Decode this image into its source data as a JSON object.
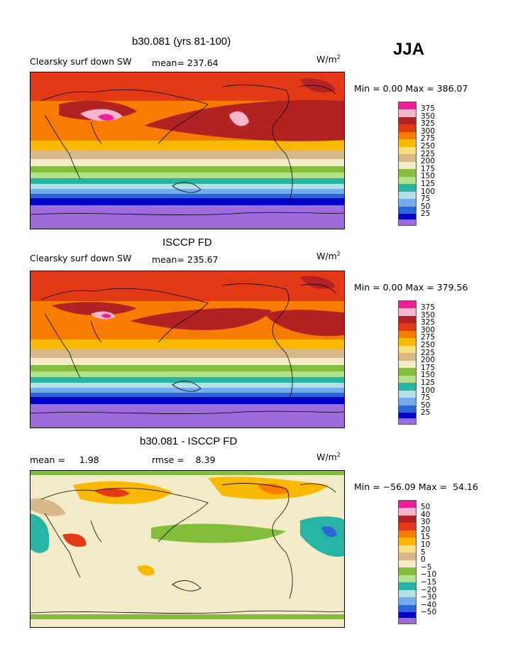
{
  "season": "JJA",
  "colors": {
    "pos": [
      "#f01c98",
      "#f8b6cc",
      "#b22222",
      "#e23a16",
      "#f87c04",
      "#f8b804",
      "#f8e080",
      "#d8b88a",
      "#f4ecc8",
      "#84bc3c",
      "#b2e28c",
      "#28b4a4",
      "#b4e0e4",
      "#74acec",
      "#2c64dc",
      "#0000c8",
      "#9c6cdc"
    ]
  },
  "panels": [
    {
      "title": "b30.081 (yrs 81-100)",
      "left_label": "Clearsky surf down SW",
      "stat_label": "mean= 237.64",
      "stat2": "",
      "units": "W/m",
      "units_sup": "2",
      "minmax": "Min =    0.00 Max = 386.07",
      "levels": [
        "375",
        "350",
        "325",
        "300",
        "275",
        "250",
        "225",
        "200",
        "175",
        "150",
        "125",
        "100",
        "75",
        "50",
        "25"
      ]
    },
    {
      "title": "ISCCP FD",
      "left_label": "Clearsky surf down SW",
      "stat_label": "mean= 235.67",
      "stat2": "",
      "units": "W/m",
      "units_sup": "2",
      "minmax": "Min =    0.00 Max = 379.56",
      "levels": [
        "375",
        "350",
        "325",
        "300",
        "275",
        "250",
        "225",
        "200",
        "175",
        "150",
        "125",
        "100",
        "75",
        "50",
        "25"
      ]
    },
    {
      "title": "b30.081 - ISCCP FD",
      "left_label": "mean =     1.98",
      "stat_label": "rmse =    8.39",
      "stat2": "",
      "units": "W/m",
      "units_sup": "2",
      "minmax": "Min = −56.09 Max =  54.16",
      "levels": [
        "50",
        "40",
        "30",
        "20",
        "15",
        "10",
        "5",
        "0",
        "−5",
        "−10",
        "−15",
        "−20",
        "−30",
        "−40",
        "−50"
      ]
    }
  ]
}
